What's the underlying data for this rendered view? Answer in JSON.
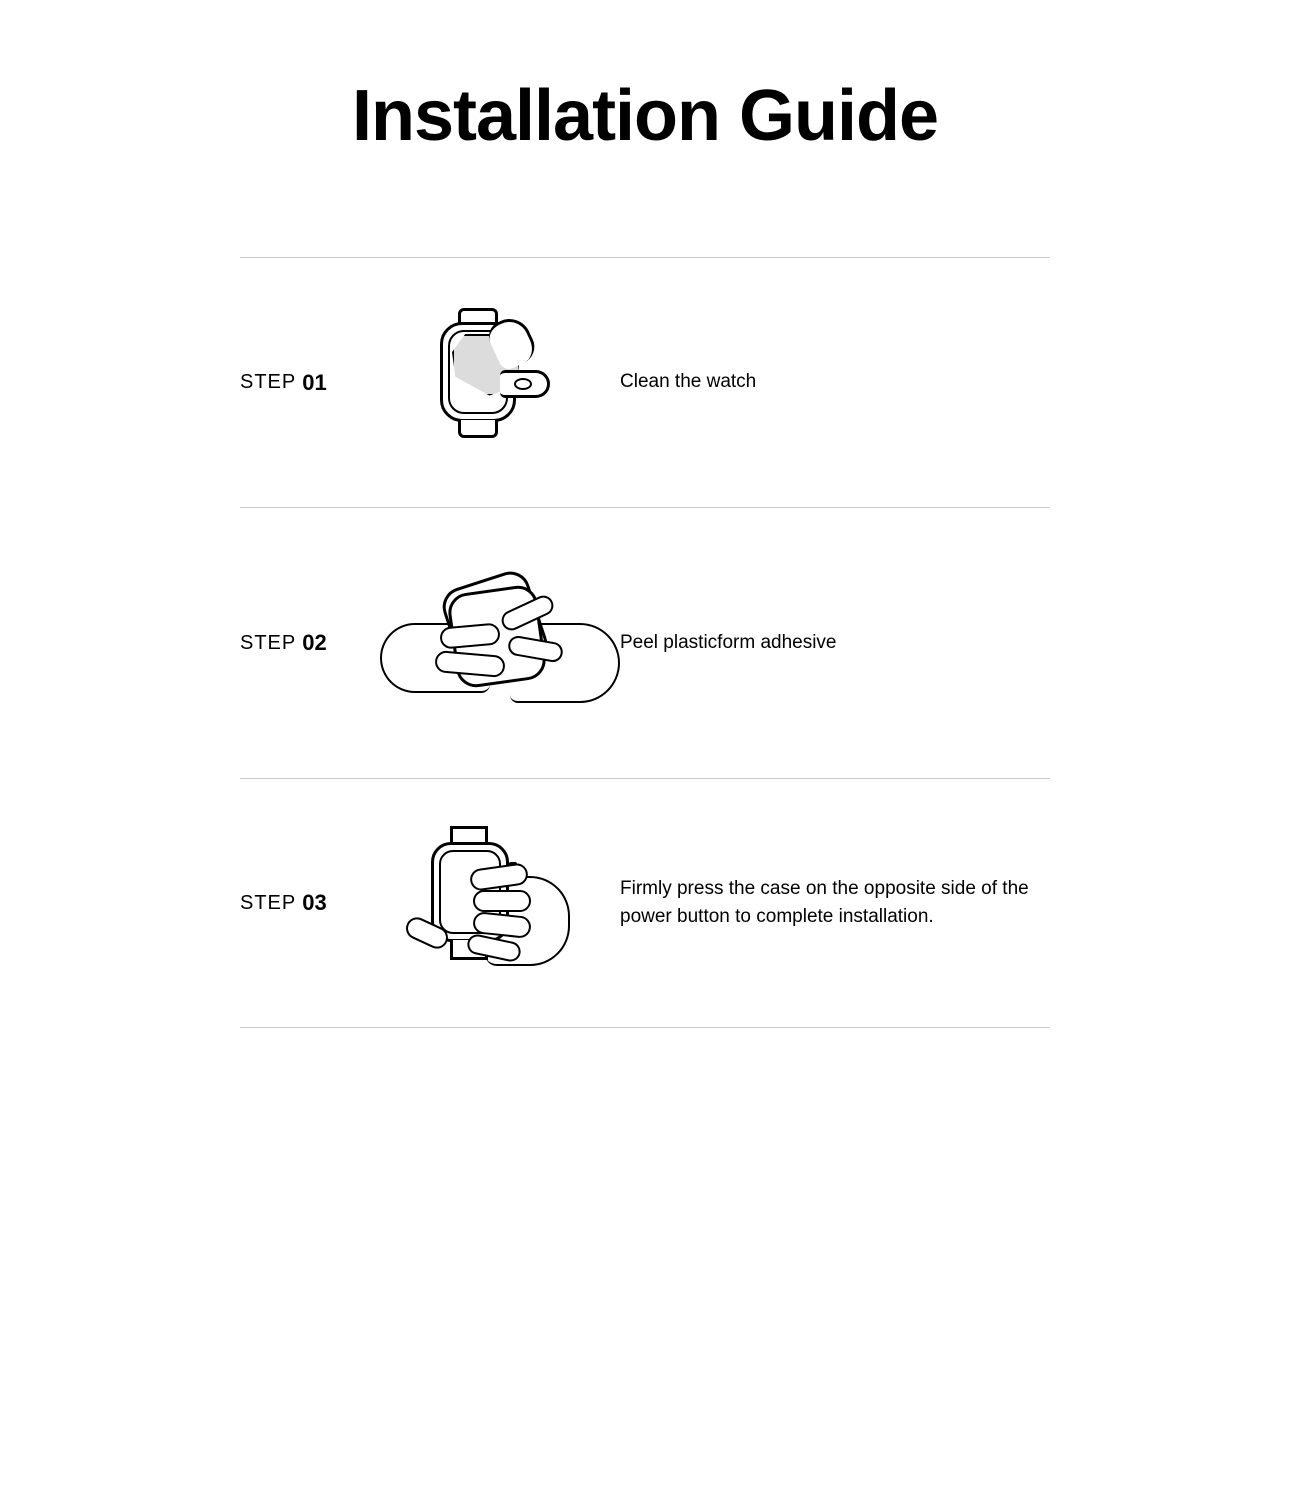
{
  "title": "Installation Guide",
  "step_word": "STEP",
  "steps": [
    {
      "num": "01",
      "desc": "Clean the watch"
    },
    {
      "num": "02",
      "desc": "Peel plasticform adhesive"
    },
    {
      "num": "03",
      "desc": "Firmly press the case on the opposite side of the power button to complete installation."
    }
  ],
  "style": {
    "title_fontsize": 72,
    "title_weight": 700,
    "step_word_fontsize": 20,
    "step_num_fontsize": 22,
    "step_num_weight": 900,
    "desc_fontsize": 19,
    "divider_color": "#cccccc",
    "text_color": "#000000",
    "background_color": "#ffffff",
    "illustration_stroke": "#000000",
    "illustration_fill_shade": "#dcdcdc",
    "content_width": 810,
    "row_min_height": 250
  }
}
